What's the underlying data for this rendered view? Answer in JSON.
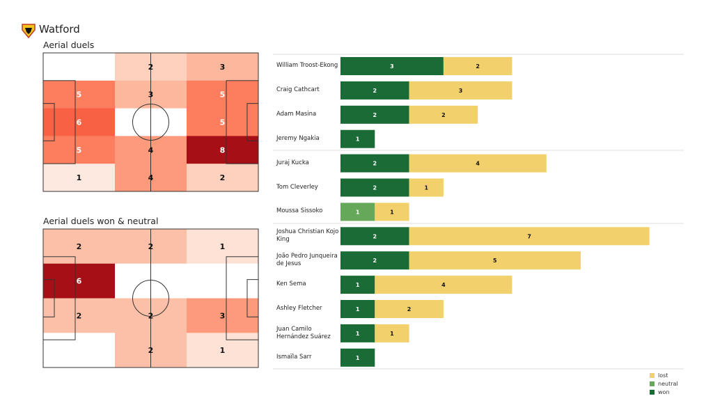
{
  "team": "Watford",
  "colors": {
    "won": "#1a6b35",
    "neutral": "#66a85a",
    "lost": "#f2d06b"
  },
  "chart_data": [
    {
      "type": "heatmap",
      "title": "Aerial duels",
      "colormap": "Reds",
      "grid": [
        [
          0,
          2,
          3
        ],
        [
          5,
          3,
          5
        ],
        [
          6,
          0,
          5
        ],
        [
          5,
          4,
          8
        ],
        [
          1,
          4,
          2
        ]
      ]
    },
    {
      "type": "heatmap",
      "title": "Aerial duels won & neutral",
      "colormap": "Reds",
      "grid": [
        [
          2,
          2,
          1
        ],
        [
          6,
          0,
          0
        ],
        [
          2,
          2,
          3
        ],
        [
          0,
          2,
          1
        ]
      ]
    },
    {
      "type": "bar",
      "orientation": "horizontal",
      "stacked": true,
      "legend": "bottom-right",
      "series_names": [
        "lost",
        "neutral",
        "won"
      ],
      "players": [
        {
          "name": "William Troost-Ekong",
          "won": 3,
          "neutral": 0,
          "lost": 2
        },
        {
          "name": "Craig Cathcart",
          "won": 2,
          "neutral": 0,
          "lost": 3
        },
        {
          "name": "Adam Masina",
          "won": 2,
          "neutral": 0,
          "lost": 2
        },
        {
          "name": "Jeremy Ngakia",
          "won": 1,
          "neutral": 0,
          "lost": 0
        },
        {
          "name": "Juraj Kucka",
          "won": 2,
          "neutral": 0,
          "lost": 4
        },
        {
          "name": "Tom Cleverley",
          "won": 2,
          "neutral": 0,
          "lost": 1
        },
        {
          "name": "Moussa Sissoko",
          "won": 0,
          "neutral": 1,
          "lost": 1
        },
        {
          "name": "Joshua Christian Kojo King",
          "won": 2,
          "neutral": 0,
          "lost": 7
        },
        {
          "name": "João Pedro Junqueira de Jesus",
          "won": 2,
          "neutral": 0,
          "lost": 5
        },
        {
          "name": "Ken Sema",
          "won": 1,
          "neutral": 0,
          "lost": 4
        },
        {
          "name": "Ashley Fletcher",
          "won": 1,
          "neutral": 0,
          "lost": 2
        },
        {
          "name": "Juan Camilo Hernández Suárez",
          "won": 1,
          "neutral": 0,
          "lost": 1
        },
        {
          "name": "Ismaïla Sarr",
          "won": 1,
          "neutral": 0,
          "lost": 0
        }
      ]
    }
  ]
}
